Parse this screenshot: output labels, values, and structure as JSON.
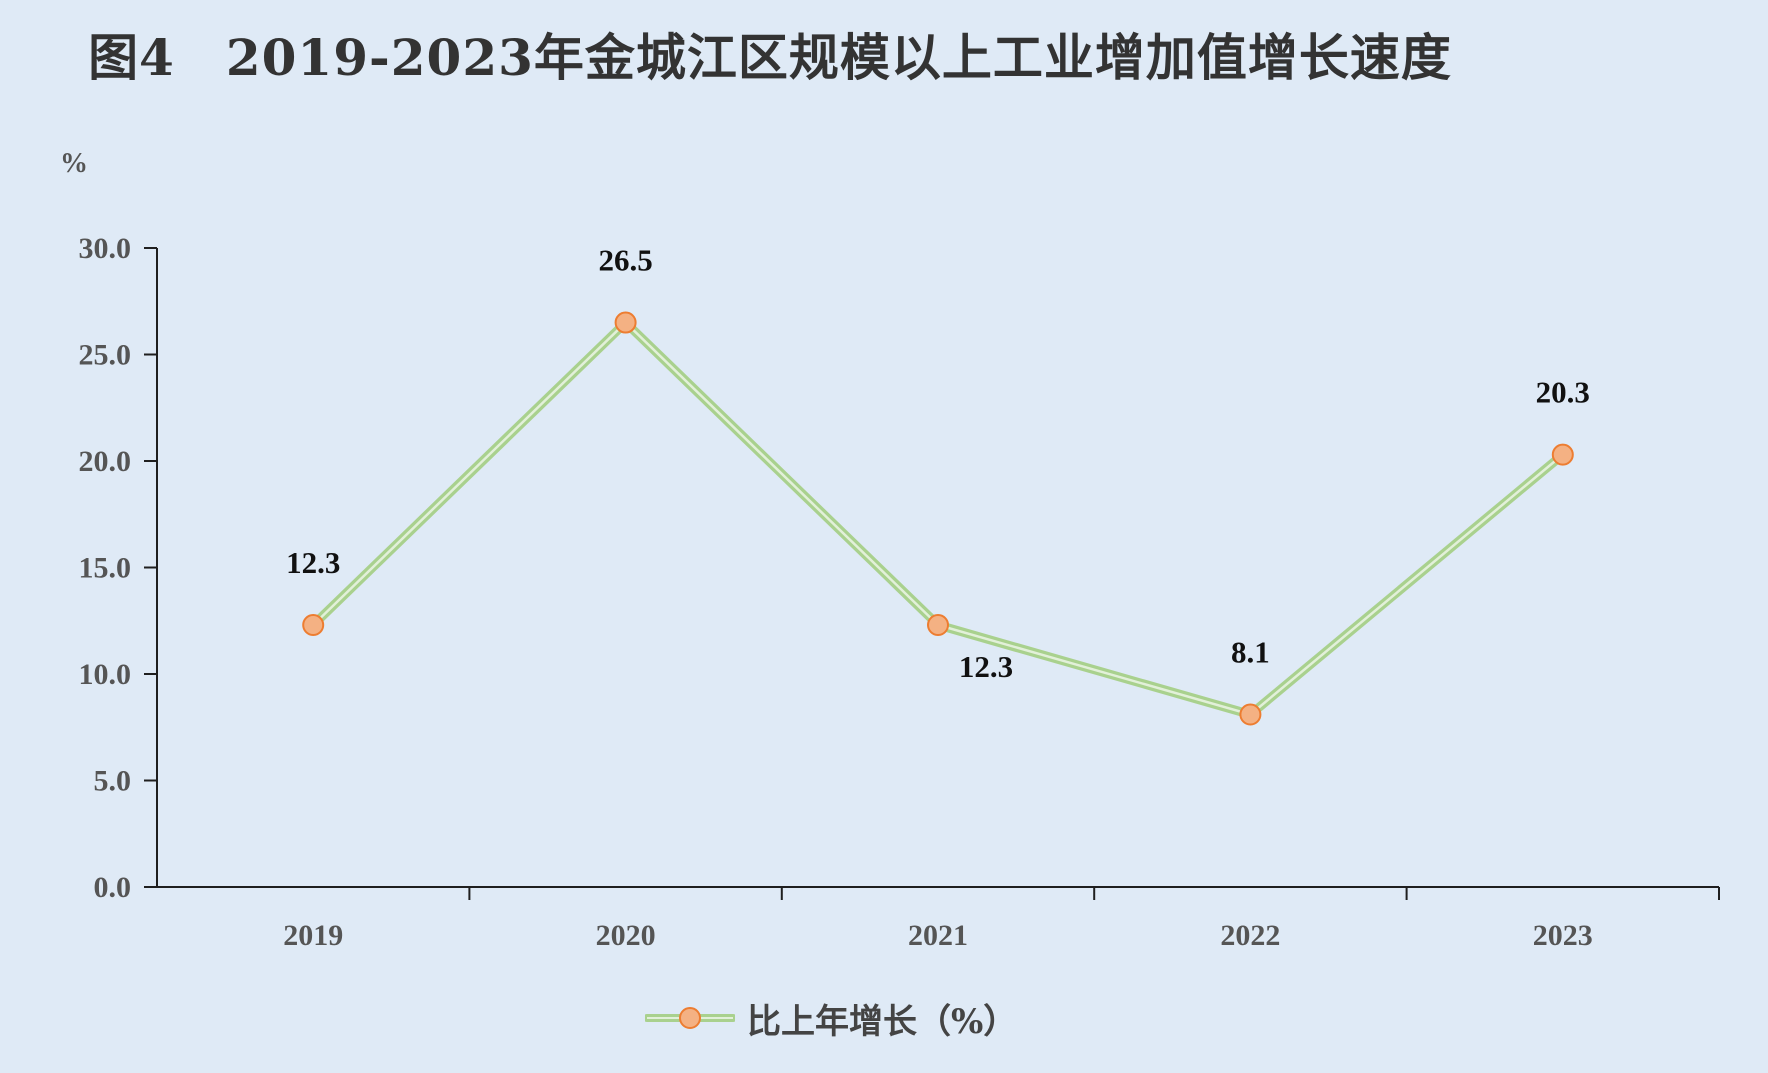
{
  "chart_data": {
    "type": "line",
    "title": "图4　2019-2023年金城江区规模以上工业增加值增长速度",
    "ylabel": "%",
    "xlabel": "",
    "ylim": [
      0,
      30
    ],
    "yticks": [
      "0.0",
      "5.0",
      "10.0",
      "15.0",
      "20.0",
      "25.0",
      "30.0"
    ],
    "categories": [
      "2019",
      "2020",
      "2021",
      "2022",
      "2023"
    ],
    "series": [
      {
        "name": "比上年增长（%）",
        "values": [
          12.3,
          26.5,
          12.3,
          8.1,
          20.3
        ],
        "labels": [
          "12.3",
          "26.5",
          "12.3",
          "8.1",
          "20.3"
        ]
      }
    ],
    "legend_position": "bottom",
    "grid": false,
    "colors": {
      "background": "#dfeaf6",
      "line": "#a9d18e",
      "marker_fill": "#f4b183",
      "marker_stroke": "#ed7d31",
      "axis": "#1f1f1f"
    }
  }
}
